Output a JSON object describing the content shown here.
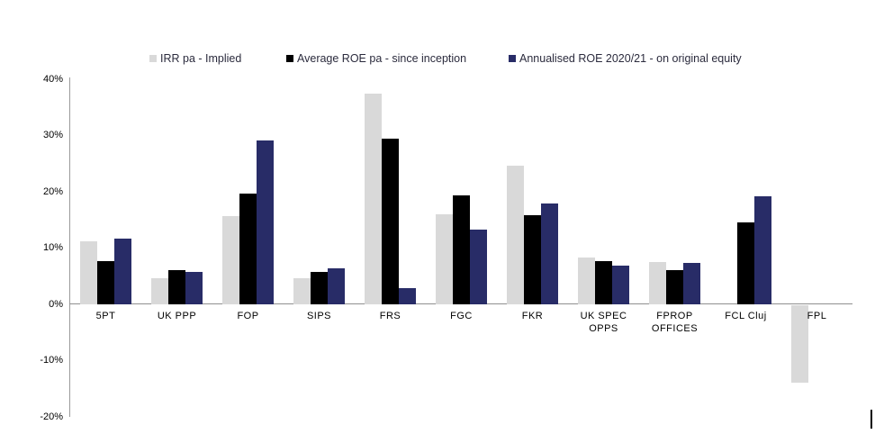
{
  "legend": {
    "items": [
      {
        "label": "IRR pa - Implied",
        "color": "#D9D9D9"
      },
      {
        "label": "Average ROE pa - since inception",
        "color": "#000000"
      },
      {
        "label": "Annualised ROE 2020/21 - on original equity",
        "color": "#282C67"
      }
    ]
  },
  "chart_data": {
    "type": "bar",
    "title": "",
    "categories": [
      "5PT",
      "UK PPP",
      "FOP",
      "SIPS",
      "FRS",
      "FGC",
      "FKR",
      "UK SPEC\nOPPS",
      "FPROP\nOFFICES",
      "FCL Cluj",
      "FPL"
    ],
    "series": [
      {
        "name": "IRR pa - Implied",
        "color": "#D9D9D9",
        "values": [
          11.2,
          4.7,
          15.6,
          4.6,
          37.4,
          16.0,
          24.7,
          8.3,
          7.5,
          0,
          -13.8
        ]
      },
      {
        "name": "Average ROE pa - since inception",
        "color": "#000000",
        "values": [
          7.7,
          6.1,
          19.7,
          5.7,
          29.4,
          19.3,
          15.8,
          7.6,
          6.0,
          14.5,
          0
        ]
      },
      {
        "name": "Annualised ROE 2020/21 - on original equity",
        "color": "#282C67",
        "values": [
          11.6,
          5.8,
          29.1,
          6.4,
          2.8,
          13.3,
          17.9,
          6.9,
          7.4,
          19.2,
          0
        ]
      }
    ],
    "unit": "%",
    "ylim": [
      -20,
      40
    ],
    "yticks": [
      40,
      30,
      20,
      10,
      0,
      -10,
      -20
    ],
    "ytick_labels": [
      "40%",
      "30%",
      "20%",
      "10%",
      "0%",
      "-10%",
      "-20%"
    ],
    "grid": false,
    "legend_position": "top"
  }
}
